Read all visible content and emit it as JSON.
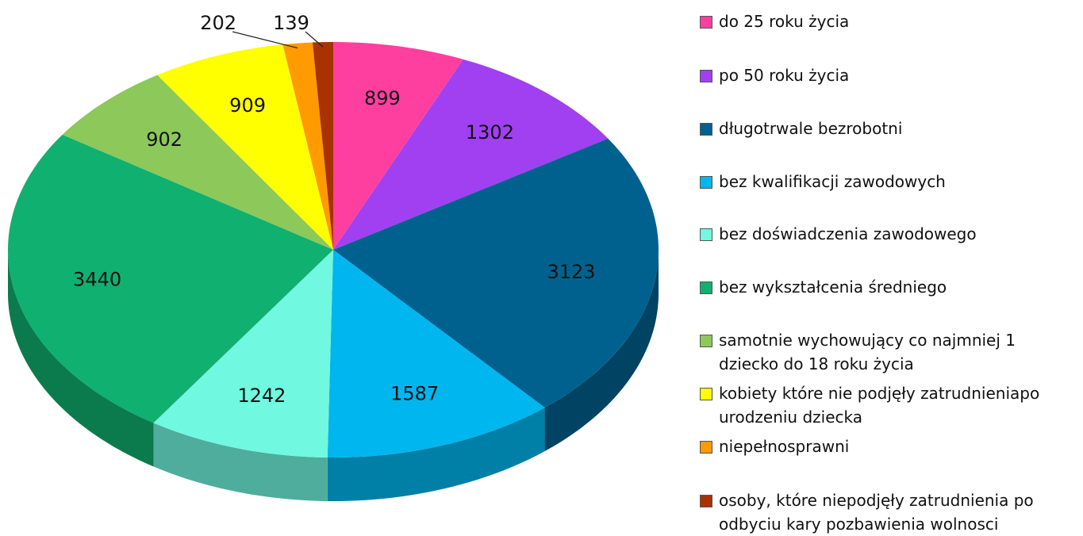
{
  "chart_data": {
    "type": "pie3d",
    "categories": [
      "do 25 roku życia",
      "po 50 roku życia",
      "długotrwale bezrobotni",
      "bez kwalifikacji zawodowych",
      "bez doświadczenia zawodowego",
      "bez wykształcenia średniego",
      "samotnie wychowujący co najmniej 1 dziecko do 18 roku życia",
      "kobiety które nie podjęły zatrudnieniapo urodzeniu dziecka",
      "niepełnosprawni",
      "osoby, które niepodjęły zatrudnienia po odbyciu kary pozbawienia wolnosci"
    ],
    "values": [
      899,
      1302,
      3123,
      1587,
      1242,
      3440,
      902,
      909,
      202,
      139
    ],
    "colors": [
      "#ff3fa0",
      "#a040f0",
      "#00618f",
      "#00b6ef",
      "#70f8e0",
      "#10b070",
      "#8cc85a",
      "#ffff00",
      "#ff9a00",
      "#a83200"
    ],
    "legend": "right"
  }
}
